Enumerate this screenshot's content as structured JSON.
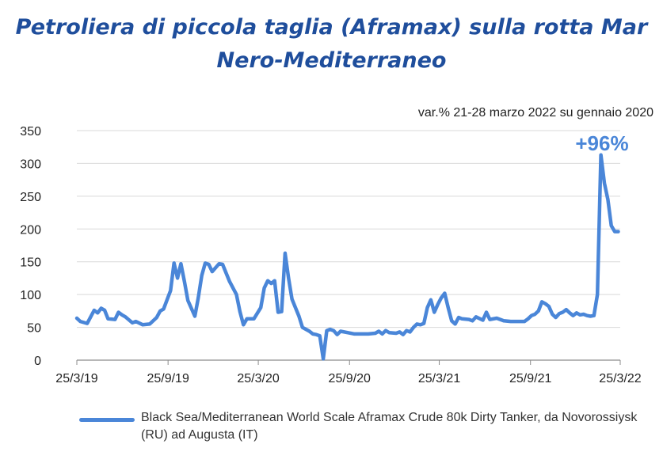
{
  "title": "Petroliera di piccola taglia (Aframax) sulla rotta Mar Nero-Mediterraneo",
  "subtitle": "var.% 21-28 marzo 2022 su gennaio 2020",
  "annotation": "+96%",
  "legend_label": "Black Sea/Mediterranean World Scale Aframax Crude 80k Dirty Tanker, da Novorossiysk (RU) ad Augusta (IT)",
  "colors": {
    "series": "#4a86d8",
    "title": "#1f4e9c",
    "annotation": "#4a86d8",
    "grid": "#d9d9d9"
  },
  "chart_data": {
    "type": "line",
    "title": "Petroliera di piccola taglia (Aframax) sulla rotta Mar Nero-Mediterraneo",
    "xlabel": "",
    "ylabel": "",
    "ylim": [
      0,
      350
    ],
    "yticks": [
      0,
      50,
      100,
      150,
      200,
      250,
      300,
      350
    ],
    "xlim": [
      "2019-03-25",
      "2022-03-25"
    ],
    "xticks": [
      {
        "date": "2019-03-25",
        "label": "25/3/19"
      },
      {
        "date": "2019-09-25",
        "label": "25/9/19"
      },
      {
        "date": "2020-03-25",
        "label": "25/3/20"
      },
      {
        "date": "2020-09-25",
        "label": "25/9/20"
      },
      {
        "date": "2021-03-25",
        "label": "25/3/21"
      },
      {
        "date": "2021-09-25",
        "label": "25/9/21"
      },
      {
        "date": "2022-03-25",
        "label": "25/3/22"
      }
    ],
    "grid": true,
    "legend_position": "bottom",
    "series": [
      {
        "name": "Black Sea/Mediterranean World Scale Aframax Crude 80k Dirty Tanker, da Novorossiysk (RU) ad Augusta (IT)",
        "points": [
          [
            "2019-03-25",
            64
          ],
          [
            "2019-04-01",
            59
          ],
          [
            "2019-04-15",
            56
          ],
          [
            "2019-04-29",
            76
          ],
          [
            "2019-05-06",
            72
          ],
          [
            "2019-05-13",
            79
          ],
          [
            "2019-05-20",
            76
          ],
          [
            "2019-05-27",
            63
          ],
          [
            "2019-06-10",
            62
          ],
          [
            "2019-06-17",
            73
          ],
          [
            "2019-06-24",
            69
          ],
          [
            "2019-07-01",
            66
          ],
          [
            "2019-07-15",
            57
          ],
          [
            "2019-07-22",
            59
          ],
          [
            "2019-08-05",
            54
          ],
          [
            "2019-08-19",
            55
          ],
          [
            "2019-09-02",
            65
          ],
          [
            "2019-09-09",
            75
          ],
          [
            "2019-09-16",
            78
          ],
          [
            "2019-09-30",
            106
          ],
          [
            "2019-10-07",
            148
          ],
          [
            "2019-10-14",
            125
          ],
          [
            "2019-10-21",
            147
          ],
          [
            "2019-10-28",
            120
          ],
          [
            "2019-11-04",
            91
          ],
          [
            "2019-11-18",
            67
          ],
          [
            "2019-11-25",
            95
          ],
          [
            "2019-12-02",
            129
          ],
          [
            "2019-12-09",
            148
          ],
          [
            "2019-12-16",
            146
          ],
          [
            "2019-12-23",
            135
          ],
          [
            "2020-01-06",
            147
          ],
          [
            "2020-01-13",
            146
          ],
          [
            "2020-01-27",
            120
          ],
          [
            "2020-02-10",
            100
          ],
          [
            "2020-02-17",
            74
          ],
          [
            "2020-02-24",
            54
          ],
          [
            "2020-03-02",
            63
          ],
          [
            "2020-03-16",
            63
          ],
          [
            "2020-03-30",
            80
          ],
          [
            "2020-04-06",
            110
          ],
          [
            "2020-04-13",
            121
          ],
          [
            "2020-04-20",
            117
          ],
          [
            "2020-04-27",
            121
          ],
          [
            "2020-05-04",
            73
          ],
          [
            "2020-05-11",
            74
          ],
          [
            "2020-05-18",
            163
          ],
          [
            "2020-05-25",
            125
          ],
          [
            "2020-06-01",
            93
          ],
          [
            "2020-06-15",
            67
          ],
          [
            "2020-06-22",
            50
          ],
          [
            "2020-07-06",
            44
          ],
          [
            "2020-07-13",
            40
          ],
          [
            "2020-07-20",
            39
          ],
          [
            "2020-07-27",
            37
          ],
          [
            "2020-08-03",
            2
          ],
          [
            "2020-08-10",
            45
          ],
          [
            "2020-08-17",
            47
          ],
          [
            "2020-08-24",
            45
          ],
          [
            "2020-08-31",
            39
          ],
          [
            "2020-09-07",
            44
          ],
          [
            "2020-09-21",
            42
          ],
          [
            "2020-10-05",
            40
          ],
          [
            "2020-10-19",
            40
          ],
          [
            "2020-11-02",
            40
          ],
          [
            "2020-11-16",
            41
          ],
          [
            "2020-11-23",
            44
          ],
          [
            "2020-11-30",
            40
          ],
          [
            "2020-12-07",
            45
          ],
          [
            "2020-12-14",
            42
          ],
          [
            "2020-12-28",
            41
          ],
          [
            "2021-01-04",
            43
          ],
          [
            "2021-01-11",
            39
          ],
          [
            "2021-01-18",
            45
          ],
          [
            "2021-01-25",
            43
          ],
          [
            "2021-02-01",
            50
          ],
          [
            "2021-02-08",
            55
          ],
          [
            "2021-02-15",
            54
          ],
          [
            "2021-02-22",
            56
          ],
          [
            "2021-03-01",
            80
          ],
          [
            "2021-03-08",
            92
          ],
          [
            "2021-03-15",
            73
          ],
          [
            "2021-03-22",
            85
          ],
          [
            "2021-03-29",
            95
          ],
          [
            "2021-04-05",
            102
          ],
          [
            "2021-04-12",
            80
          ],
          [
            "2021-04-19",
            60
          ],
          [
            "2021-04-26",
            55
          ],
          [
            "2021-05-03",
            65
          ],
          [
            "2021-05-10",
            63
          ],
          [
            "2021-05-24",
            62
          ],
          [
            "2021-05-31",
            60
          ],
          [
            "2021-06-07",
            66
          ],
          [
            "2021-06-21",
            61
          ],
          [
            "2021-06-28",
            73
          ],
          [
            "2021-07-05",
            62
          ],
          [
            "2021-07-19",
            64
          ],
          [
            "2021-08-02",
            60
          ],
          [
            "2021-08-16",
            59
          ],
          [
            "2021-08-30",
            59
          ],
          [
            "2021-09-13",
            59
          ],
          [
            "2021-09-20",
            63
          ],
          [
            "2021-09-27",
            68
          ],
          [
            "2021-10-04",
            70
          ],
          [
            "2021-10-11",
            75
          ],
          [
            "2021-10-18",
            89
          ],
          [
            "2021-10-25",
            86
          ],
          [
            "2021-11-01",
            82
          ],
          [
            "2021-11-08",
            70
          ],
          [
            "2021-11-15",
            65
          ],
          [
            "2021-11-22",
            71
          ],
          [
            "2021-11-29",
            73
          ],
          [
            "2021-12-06",
            77
          ],
          [
            "2021-12-13",
            72
          ],
          [
            "2021-12-20",
            68
          ],
          [
            "2021-12-27",
            72
          ],
          [
            "2022-01-03",
            69
          ],
          [
            "2022-01-10",
            70
          ],
          [
            "2022-01-17",
            68
          ],
          [
            "2022-01-24",
            67
          ],
          [
            "2022-01-31",
            68
          ],
          [
            "2022-02-07",
            100
          ],
          [
            "2022-02-14",
            313
          ],
          [
            "2022-02-21",
            270
          ],
          [
            "2022-02-28",
            245
          ],
          [
            "2022-03-07",
            205
          ],
          [
            "2022-03-14",
            196
          ],
          [
            "2022-03-21",
            196
          ]
        ]
      }
    ]
  }
}
